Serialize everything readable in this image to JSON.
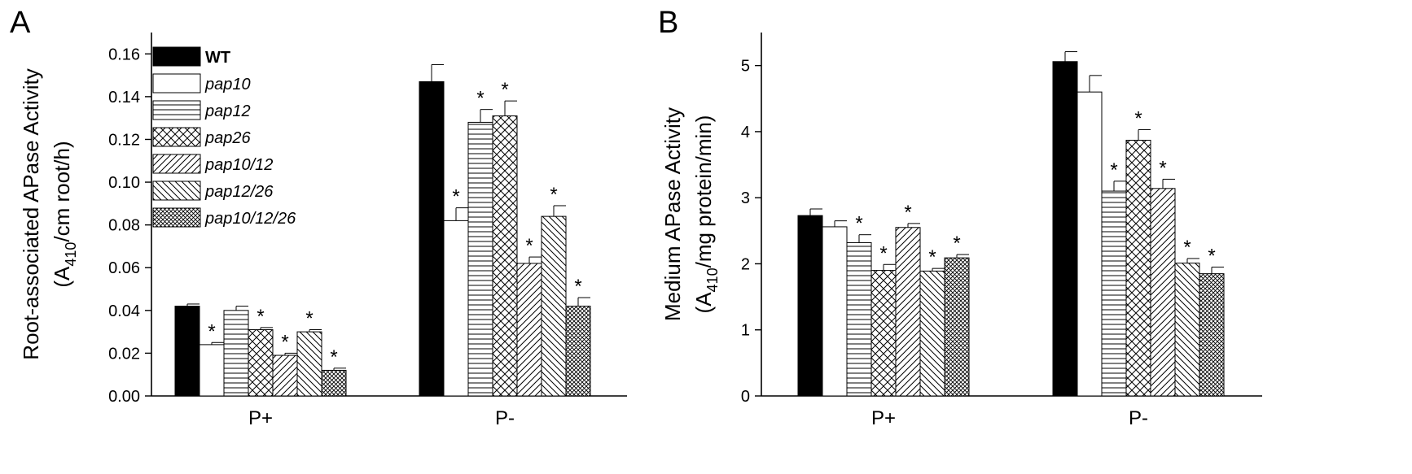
{
  "chart_data": [
    {
      "panel": "A",
      "type": "bar",
      "ylabel": "Root-associated APase Activity",
      "ylabel_unit": {
        "prefix": "(A",
        "sub": "410",
        "suffix": "/cm root/h)"
      },
      "ylim": [
        0,
        0.17
      ],
      "yticks": [
        "0.00",
        "0.02",
        "0.04",
        "0.06",
        "0.08",
        "0.10",
        "0.12",
        "0.14",
        "0.16"
      ],
      "ytick_values": [
        0,
        0.02,
        0.04,
        0.06,
        0.08,
        0.1,
        0.12,
        0.14,
        0.16
      ],
      "categories": [
        "P+",
        "P-"
      ],
      "legend_position": "top-left",
      "series": [
        {
          "name": "WT",
          "pattern": "solid",
          "values": [
            0.042,
            0.147
          ],
          "errors": [
            0.001,
            0.008
          ],
          "sig": [
            false,
            false
          ]
        },
        {
          "name": "pap10",
          "pattern": "empty",
          "values": [
            0.024,
            0.082
          ],
          "errors": [
            0.001,
            0.006
          ],
          "sig": [
            true,
            true
          ]
        },
        {
          "name": "pap12",
          "pattern": "hlines",
          "values": [
            0.04,
            0.128
          ],
          "errors": [
            0.002,
            0.006
          ],
          "sig": [
            false,
            true
          ]
        },
        {
          "name": "pap26",
          "pattern": "crosshatch",
          "values": [
            0.031,
            0.131
          ],
          "errors": [
            0.001,
            0.007
          ],
          "sig": [
            true,
            true
          ]
        },
        {
          "name": "pap10/12",
          "pattern": "fdiag",
          "values": [
            0.019,
            0.062
          ],
          "errors": [
            0.001,
            0.003
          ],
          "sig": [
            true,
            true
          ]
        },
        {
          "name": "pap12/26",
          "pattern": "bdiag",
          "values": [
            0.03,
            0.084
          ],
          "errors": [
            0.001,
            0.005
          ],
          "sig": [
            true,
            true
          ]
        },
        {
          "name": "pap10/12/26",
          "pattern": "dense",
          "values": [
            0.012,
            0.042
          ],
          "errors": [
            0.001,
            0.004
          ],
          "sig": [
            true,
            true
          ]
        }
      ]
    },
    {
      "panel": "B",
      "type": "bar",
      "ylabel": "Medium APase Activity",
      "ylabel_unit": {
        "prefix": "(A",
        "sub": "410",
        "suffix": "/mg protein/min)"
      },
      "ylim": [
        0,
        5.5
      ],
      "yticks": [
        "0",
        "1",
        "2",
        "3",
        "4",
        "5"
      ],
      "ytick_values": [
        0,
        1,
        2,
        3,
        4,
        5
      ],
      "categories": [
        "P+",
        "P-"
      ],
      "series": [
        {
          "name": "WT",
          "pattern": "solid",
          "values": [
            2.73,
            5.06
          ],
          "errors": [
            0.1,
            0.15
          ],
          "sig": [
            false,
            false
          ]
        },
        {
          "name": "pap10",
          "pattern": "empty",
          "values": [
            2.56,
            4.6
          ],
          "errors": [
            0.09,
            0.25
          ],
          "sig": [
            false,
            false
          ]
        },
        {
          "name": "pap12",
          "pattern": "hlines",
          "values": [
            2.32,
            3.1
          ],
          "errors": [
            0.12,
            0.15
          ],
          "sig": [
            true,
            true
          ]
        },
        {
          "name": "pap26",
          "pattern": "crosshatch",
          "values": [
            1.9,
            3.87
          ],
          "errors": [
            0.09,
            0.16
          ],
          "sig": [
            true,
            true
          ]
        },
        {
          "name": "pap10/12",
          "pattern": "fdiag",
          "values": [
            2.55,
            3.14
          ],
          "errors": [
            0.06,
            0.14
          ],
          "sig": [
            true,
            true
          ]
        },
        {
          "name": "pap12/26",
          "pattern": "bdiag",
          "values": [
            1.89,
            2.01
          ],
          "errors": [
            0.04,
            0.07
          ],
          "sig": [
            true,
            true
          ]
        },
        {
          "name": "pap10/12/26",
          "pattern": "dense",
          "values": [
            2.09,
            1.85
          ],
          "errors": [
            0.05,
            0.1
          ],
          "sig": [
            true,
            true
          ]
        }
      ]
    }
  ]
}
